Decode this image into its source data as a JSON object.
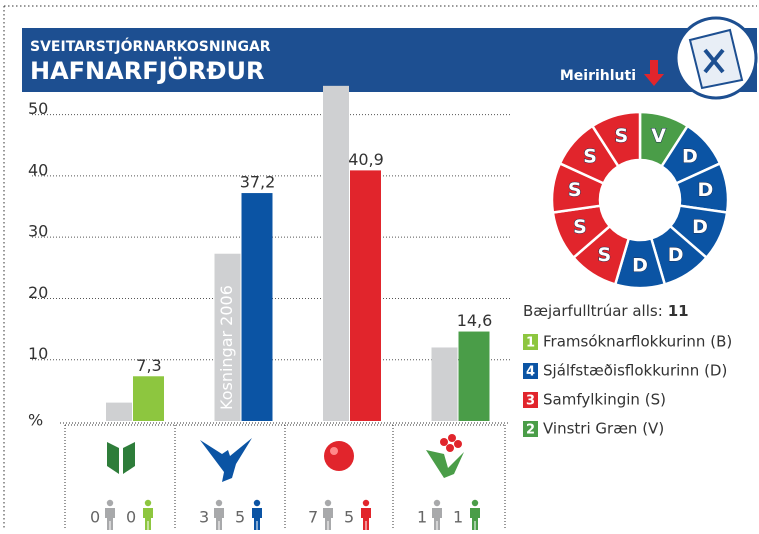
{
  "chart_data": [
    {
      "type": "bar",
      "subtitle": "SVEITARSTJÓRNARKOSNINGAR",
      "title": "HAFNARFJÖRÐUR",
      "y_label": "%",
      "categories": [
        "B",
        "D",
        "S",
        "V"
      ],
      "ylim": [
        0,
        55
      ],
      "yticks": [
        10,
        20,
        30,
        40,
        50
      ],
      "grid": true,
      "series": [
        {
          "name": "Kosningar 2006",
          "color": "#cfd0d2",
          "values": [
            3,
            27.3,
            54.7,
            12
          ],
          "seats": [
            0,
            3,
            7,
            1
          ]
        },
        {
          "colors": [
            "#8dc63f",
            "#0b54a4",
            "#e1252c",
            "#4a9d48"
          ],
          "values": [
            7.3,
            37.2,
            40.9,
            14.6
          ],
          "value_labels": [
            "7,3",
            "37,2",
            "40,9",
            "14,6"
          ],
          "seats": [
            0,
            5,
            5,
            1
          ]
        }
      ]
    },
    {
      "type": "pie",
      "title": "Meirihluti",
      "categories": [
        "V",
        "D",
        "S"
      ],
      "values": [
        1,
        5,
        5
      ],
      "colors": [
        "#4a9d48",
        "#0b54a4",
        "#e1252c"
      ],
      "total_label": "Bæjarfulltrúar alls:",
      "total": 11,
      "legend": [
        {
          "number": 1,
          "label": "Framsóknarflokkurinn (B)",
          "color": "#8dc63f"
        },
        {
          "number": 4,
          "label": "Sjálfstæðisflokkurinn (D)",
          "color": "#0b54a4"
        },
        {
          "number": 3,
          "label": "Samfylkingin (S)",
          "color": "#e1252c"
        },
        {
          "number": 2,
          "label": "Vinstri Græn (V)",
          "color": "#4a9d48"
        }
      ]
    }
  ]
}
